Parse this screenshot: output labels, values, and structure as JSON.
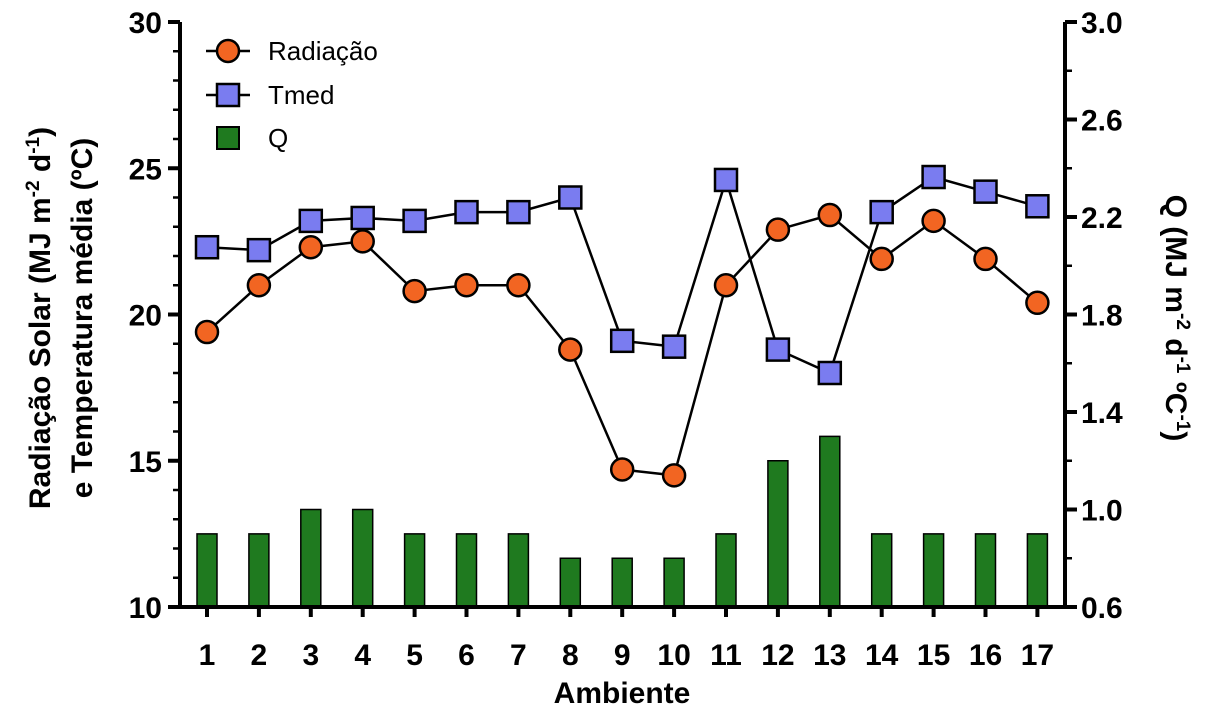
{
  "chart_data": {
    "type": "bar+line",
    "categories": [
      "1",
      "2",
      "3",
      "4",
      "5",
      "6",
      "7",
      "8",
      "9",
      "10",
      "11",
      "12",
      "13",
      "14",
      "15",
      "16",
      "17"
    ],
    "xlabel": "Ambiente",
    "ylabel_left": {
      "line1": "Radiação Solar (MJ m",
      "sup1": "-2",
      "mid": " d",
      "sup2": "-1",
      "end": ")",
      "line2": "e Temperatura média (ºC)"
    },
    "ylabel_right": {
      "base": "Q (MJ m",
      "sup1": "-2",
      "mid1": " d",
      "sup2": "-1",
      "mid2": " ºC",
      "sup3": "-1",
      "end": ")"
    },
    "ylim_left": [
      10,
      30
    ],
    "ylim_right": [
      0.6,
      3.0
    ],
    "yticks_left": [
      "10",
      "15",
      "20",
      "25",
      "30"
    ],
    "yticks_right": [
      "0.6",
      "1.0",
      "1.4",
      "1.8",
      "2.2",
      "2.6",
      "3.0"
    ],
    "legend_position": "top-left",
    "series": [
      {
        "name": "Radiação",
        "type": "line",
        "axis": "left",
        "marker": "circle",
        "color": "#f26522",
        "values": [
          19.4,
          21.0,
          22.3,
          22.5,
          20.8,
          21.0,
          21.0,
          18.8,
          14.7,
          14.5,
          21.0,
          22.9,
          23.4,
          21.9,
          23.2,
          21.9,
          20.4
        ]
      },
      {
        "name": "Tmed",
        "type": "line",
        "axis": "left",
        "marker": "square",
        "color": "#7a7cf0",
        "values": [
          22.3,
          22.2,
          23.2,
          23.3,
          23.2,
          23.5,
          23.5,
          24.0,
          19.1,
          18.9,
          24.6,
          18.8,
          18.0,
          23.5,
          24.7,
          24.2,
          23.7
        ]
      },
      {
        "name": "Q",
        "type": "bar",
        "axis": "right",
        "color": "#1f7a1f",
        "values": [
          0.9,
          0.9,
          1.0,
          1.0,
          0.9,
          0.9,
          0.9,
          0.8,
          0.8,
          0.8,
          0.9,
          1.2,
          1.3,
          0.9,
          0.9,
          0.9,
          0.9
        ]
      }
    ]
  }
}
